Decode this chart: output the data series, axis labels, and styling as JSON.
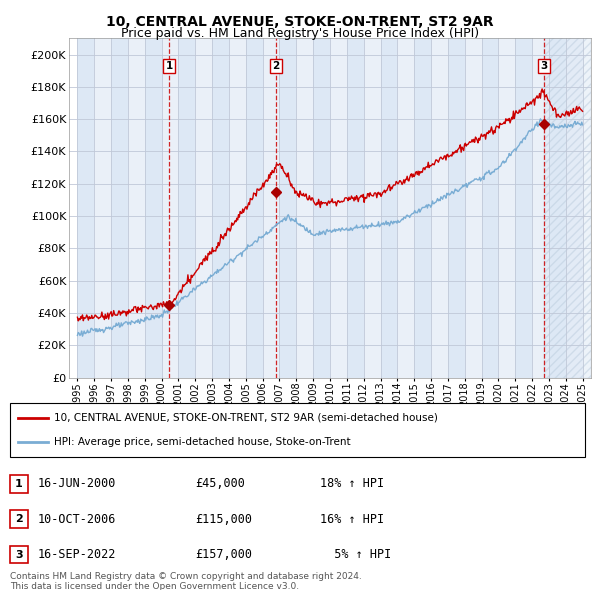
{
  "title": "10, CENTRAL AVENUE, STOKE-ON-TRENT, ST2 9AR",
  "subtitle": "Price paid vs. HM Land Registry's House Price Index (HPI)",
  "title_fontsize": 10,
  "subtitle_fontsize": 9,
  "ylabel_ticks": [
    "£0",
    "£20K",
    "£40K",
    "£60K",
    "£80K",
    "£100K",
    "£120K",
    "£140K",
    "£160K",
    "£180K",
    "£200K"
  ],
  "ytick_values": [
    0,
    20000,
    40000,
    60000,
    80000,
    100000,
    120000,
    140000,
    160000,
    180000,
    200000
  ],
  "ylim": [
    0,
    210000
  ],
  "xlim_start": 1994.5,
  "xlim_end": 2025.5,
  "hpi_color": "#7aadd4",
  "price_color": "#cc0000",
  "sale_marker_color": "#aa0000",
  "vline_color": "#cc0000",
  "grid_color": "#c0c8d8",
  "background_color": "#dde8f5",
  "background_color2": "#eef3fa",
  "legend_label_price": "10, CENTRAL AVENUE, STOKE-ON-TRENT, ST2 9AR (semi-detached house)",
  "legend_label_hpi": "HPI: Average price, semi-detached house, Stoke-on-Trent",
  "transactions": [
    {
      "num": 1,
      "date": "16-JUN-2000",
      "year": 2000.46,
      "price": 45000,
      "hpi_pct": "18%"
    },
    {
      "num": 2,
      "date": "10-OCT-2006",
      "year": 2006.78,
      "price": 115000,
      "hpi_pct": "16%"
    },
    {
      "num": 3,
      "date": "16-SEP-2022",
      "year": 2022.71,
      "price": 157000,
      "hpi_pct": "5%"
    }
  ],
  "footer_line1": "Contains HM Land Registry data © Crown copyright and database right 2024.",
  "footer_line2": "This data is licensed under the Open Government Licence v3.0.",
  "table_rows": [
    {
      "num": 1,
      "date": "16-JUN-2000",
      "price": "£45,000",
      "hpi": "18% ↑ HPI"
    },
    {
      "num": 2,
      "date": "10-OCT-2006",
      "price": "£115,000",
      "hpi": "16% ↑ HPI"
    },
    {
      "num": 3,
      "date": "16-SEP-2022",
      "price": "£157,000",
      "hpi": "  5% ↑ HPI"
    }
  ]
}
